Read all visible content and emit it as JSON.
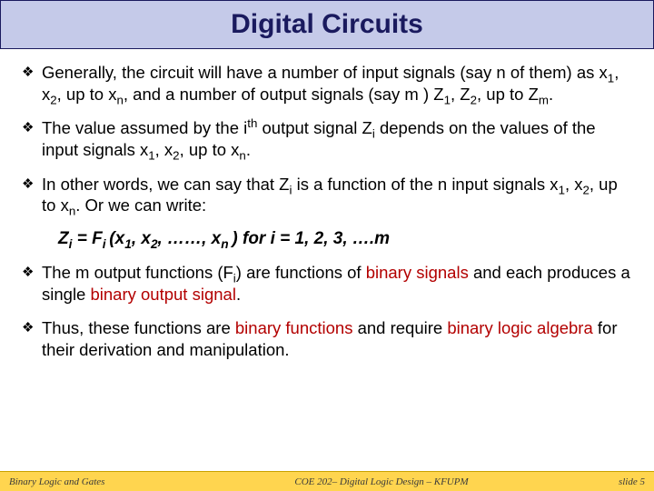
{
  "title": "Digital Circuits",
  "bullets": {
    "b1_pre": "Generally, the circuit will have a number of input signals (say n of them) as x",
    "b1_s1": "1",
    "b1_m1": ", x",
    "b1_s2": "2",
    "b1_m2": ", up to x",
    "b1_s3": "n",
    "b1_m3": ", and a number of output signals (say m ) Z",
    "b1_s4": "1",
    "b1_m4": ", Z",
    "b1_s5": "2",
    "b1_m5": ", up to Z",
    "b1_s6": "m",
    "b1_end": ".",
    "b2_pre": "The value assumed by the i",
    "b2_sup": "th",
    "b2_m1": " output signal Z",
    "b2_s1": "i",
    "b2_m2": " depends on the values of the input signals x",
    "b2_s2": "1",
    "b2_m3": ", x",
    "b2_s3": "2",
    "b2_m4": ", up to x",
    "b2_s4": "n",
    "b2_end": ".",
    "b3_pre": "In other words, we can say that Z",
    "b3_s1": "i",
    "b3_m1": " is a function of the n input signals x",
    "b3_s2": "1",
    "b3_m2": ", x",
    "b3_s3": "2",
    "b3_m3": ", up to x",
    "b3_s4": "n",
    "b3_end": ". Or we can write:",
    "f_z": "Z",
    "f_zi": "i",
    "f_eq": " = F",
    "f_fi": "i ",
    "f_open": "(x",
    "f_x1s": "1",
    "f_c1": ", x",
    "f_x2s": "2",
    "f_dots": ", ……, x",
    "f_xns": "n ",
    "f_close": ") for i = 1, 2, 3, ….m",
    "b4_pre": "The m output functions (F",
    "b4_s1": "i",
    "b4_m1": ") are functions of ",
    "b4_hl1": "binary signals",
    "b4_m2": " and each produces a single ",
    "b4_hl2": "binary output signal",
    "b4_end": ".",
    "b5_pre": "Thus, these functions are ",
    "b5_hl1": "binary functions",
    "b5_m1": " and require ",
    "b5_hl2": "binary logic algebra",
    "b5_end": " for their derivation and manipulation."
  },
  "footer": {
    "left": "Binary Logic and Gates",
    "center": "COE 202– Digital Logic Design – KFUPM",
    "right": "slide 5"
  },
  "colors": {
    "title_bg": "#c5cae9",
    "title_border": "#1a1a5e",
    "title_text": "#1a1a5e",
    "body_text": "#000000",
    "highlight": "#b30000",
    "footer_bg": "#ffd54f",
    "footer_text": "#3a3a3a"
  }
}
